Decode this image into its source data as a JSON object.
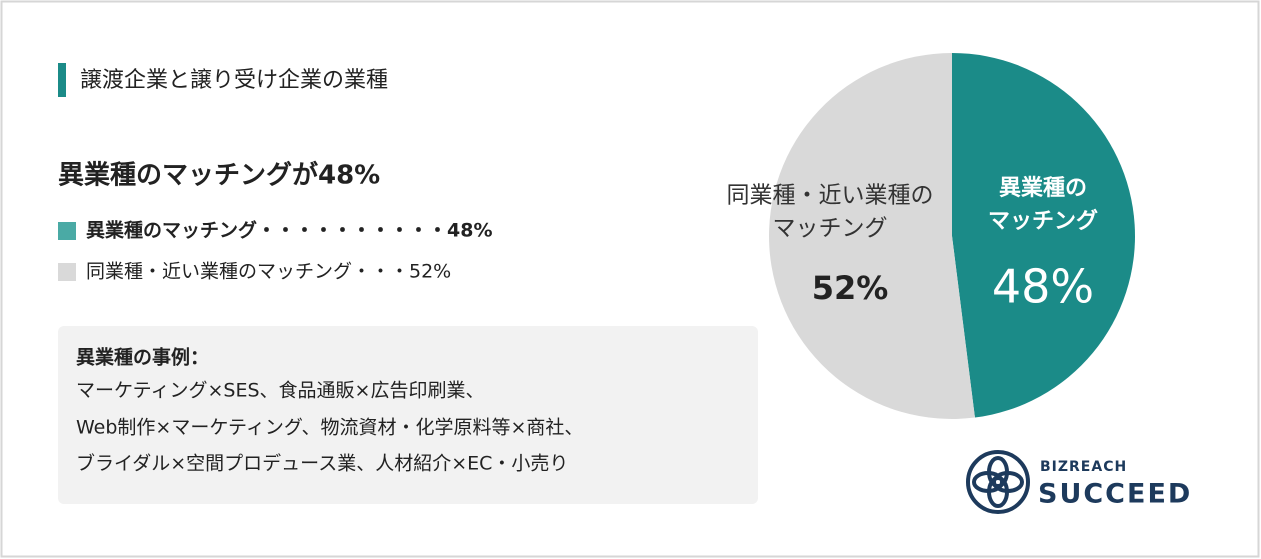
{
  "chart_data": {
    "type": "pie",
    "title": "譲渡企業と譲り受け企業の業種",
    "subtitle": "異業種のマッチングが48%",
    "categories": [
      "異業種のマッチング",
      "同業種・近い業種のマッチング"
    ],
    "slice_label_lines": [
      [
        "異業種の",
        "マッチング"
      ],
      [
        "同業種・近い業種の",
        "マッチング"
      ]
    ],
    "values": [
      48,
      52
    ],
    "value_labels": [
      "48%",
      "52%"
    ],
    "colors": [
      "#1b8b88",
      "#d9d9d9"
    ],
    "legend_colors": [
      "#4aaaa5",
      "#d9d9d9"
    ],
    "legend": [
      "異業種のマッチング・・・・・・・・・・48%",
      "同業種・近い業種のマッチング・・・52%"
    ]
  },
  "examples": {
    "title": "異業種の事例：",
    "lines": [
      "マーケティング×SES、食品通販×広告印刷業、",
      "Web制作×マーケティング、物流資材・化学原料等×商社、",
      "ブライダル×空間プロデュース業、人材紹介×EC・小売り"
    ]
  },
  "logo": {
    "top": "BIZREACH",
    "bottom": "SUCCEED"
  }
}
